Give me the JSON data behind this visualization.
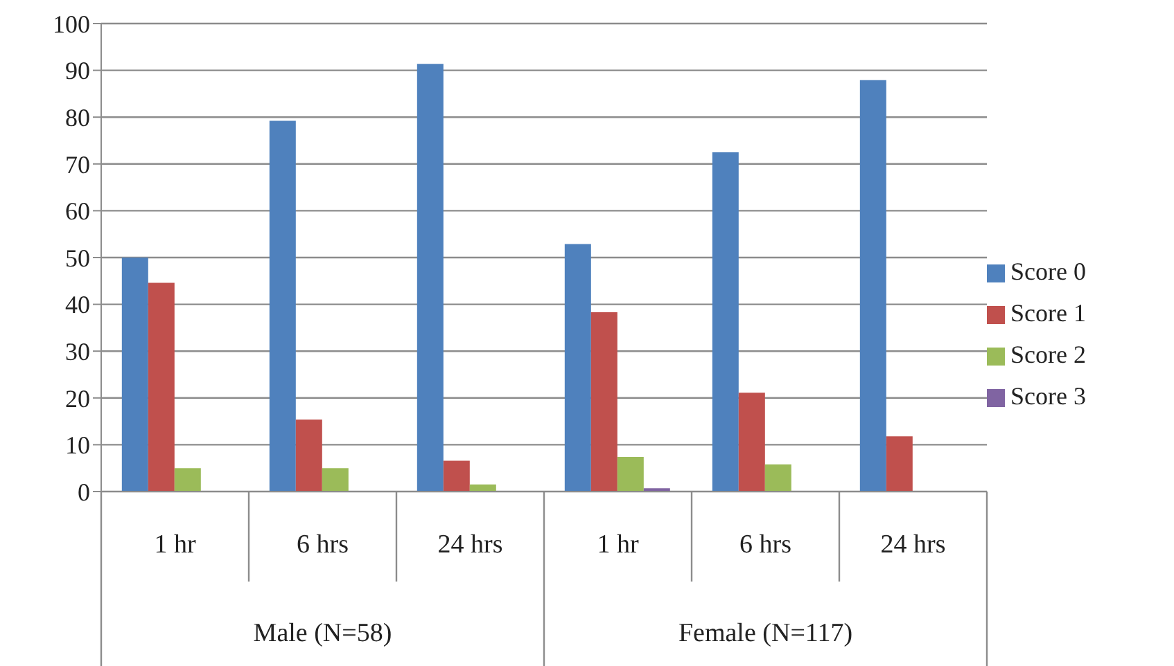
{
  "chart_data": {
    "type": "bar",
    "categories": [
      "1 hr",
      "6 hrs",
      "24 hrs",
      "1 hr",
      "6 hrs",
      "24 hrs"
    ],
    "series": [
      {
        "name": "Score 0",
        "color": "#4f81bd",
        "values": [
          50,
          79.2,
          91.4,
          52.9,
          72.5,
          87.9
        ]
      },
      {
        "name": "Score 1",
        "color": "#c0504d",
        "values": [
          44.6,
          15.4,
          6.6,
          38.3,
          21.1,
          11.8
        ]
      },
      {
        "name": "Score 2",
        "color": "#9bbb59",
        "values": [
          5,
          5,
          1.5,
          7.4,
          5.8,
          0
        ]
      },
      {
        "name": "Score 3",
        "color": "#8064a2",
        "values": [
          0,
          0,
          0,
          0.7,
          0,
          0
        ]
      }
    ],
    "ylim": [
      0,
      100
    ],
    "yticks": [
      0,
      10,
      20,
      30,
      40,
      50,
      60,
      70,
      80,
      90,
      100
    ],
    "grid": "y",
    "legend": "right",
    "annotations": [
      "Male (N=58)",
      "Female (N=117)"
    ]
  }
}
